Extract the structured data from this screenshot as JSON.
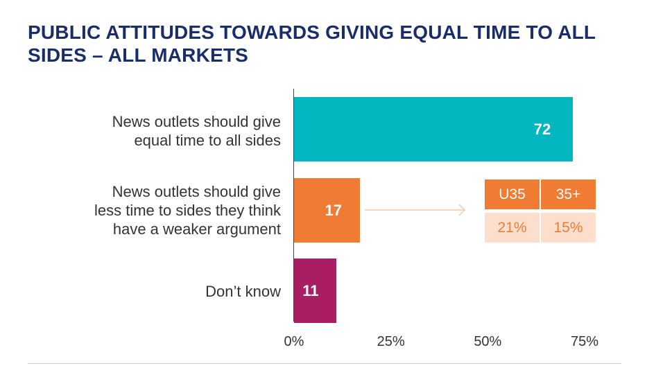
{
  "title": "PUBLIC ATTITUDES TOWARDS GIVING EQUAL TIME TO ALL SIDES – ALL MARKETS",
  "chart_data": {
    "type": "bar",
    "orientation": "horizontal",
    "title": "PUBLIC ATTITUDES TOWARDS GIVING EQUAL TIME TO ALL SIDES – ALL MARKETS",
    "categories": [
      "News outlets should give equal time to all sides",
      "News outlets should give less time to sides they think have a weaker argument",
      "Don’t know"
    ],
    "category_lines": [
      [
        "News outlets should give",
        "equal time to all sides"
      ],
      [
        "News outlets should give",
        "less time to sides they think",
        "have a weaker argument"
      ],
      [
        "Don’t know"
      ]
    ],
    "values": [
      72,
      17,
      11
    ],
    "value_labels": [
      "72",
      "17",
      "11"
    ],
    "colors": [
      "#00b6bf",
      "#f07c33",
      "#a91e63"
    ],
    "xlim": [
      0,
      75
    ],
    "xticks": [
      "0%",
      "25%",
      "50%",
      "75%"
    ],
    "grid": false,
    "age_breakdown": {
      "headers": [
        "U35",
        "35+"
      ],
      "values": [
        "21%",
        "15%"
      ],
      "header_color": "#f07c33",
      "value_bg_color": "#fbdfcc"
    }
  }
}
